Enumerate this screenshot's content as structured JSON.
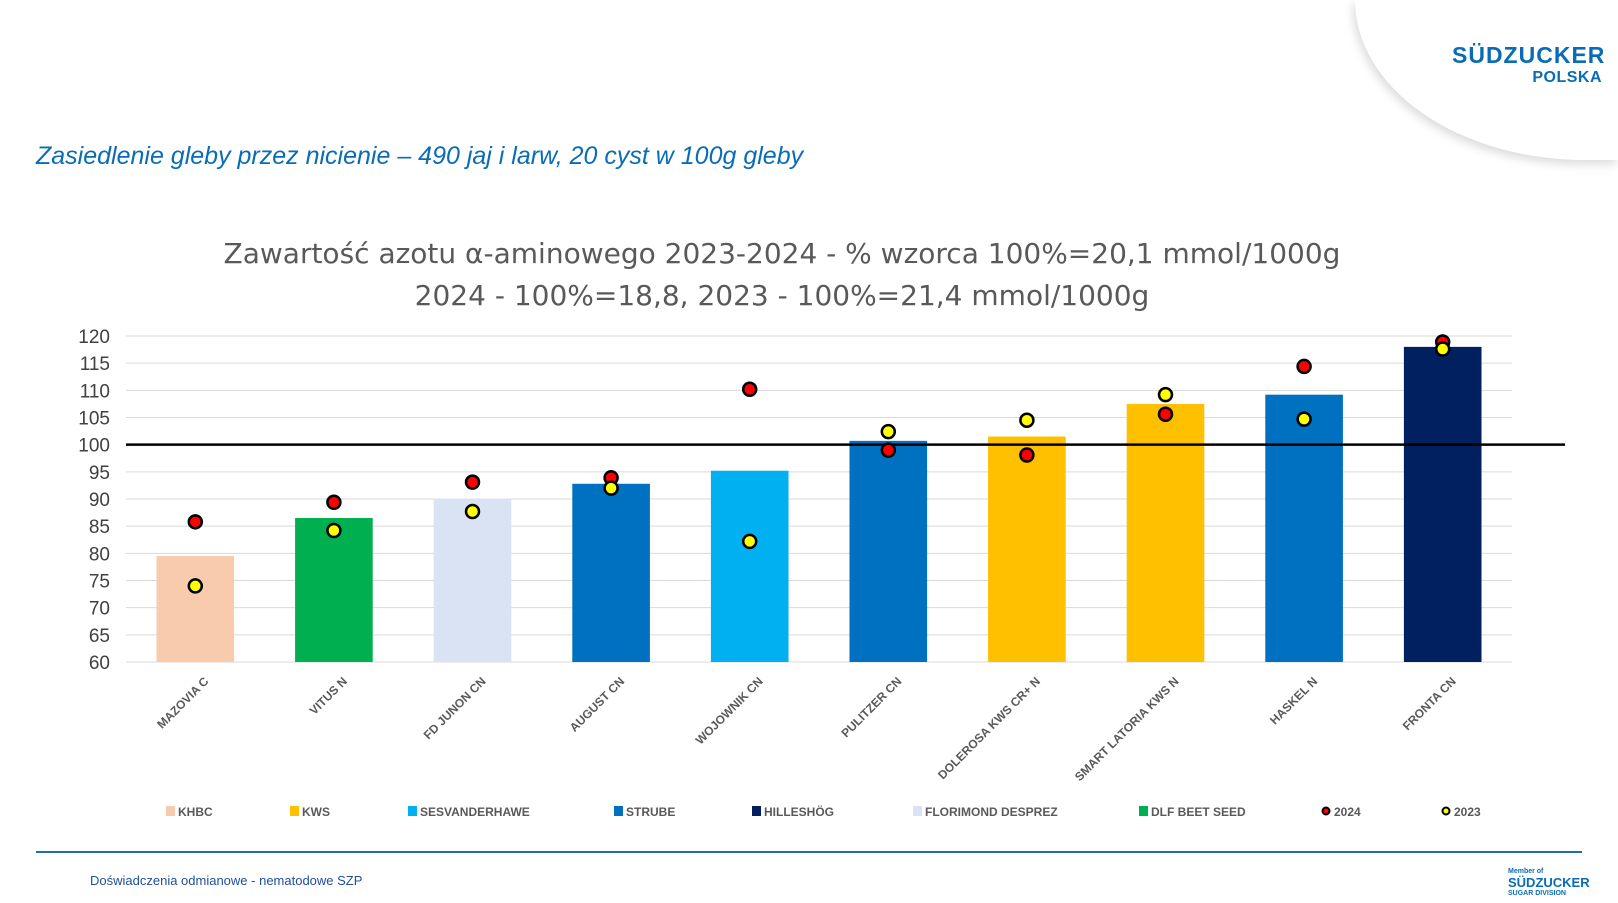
{
  "header": {
    "subtitle": "Zasiedlenie gleby przez nicienie – 490 jaj i larw, 20 cyst w 100g gleby",
    "logo_main": "SÜDZUCKER",
    "logo_sub": "POLSKA"
  },
  "footer": {
    "text": "Doświadczenia odmianowe - nematodowe SZP",
    "logo_top": "Member of",
    "logo_main": "SÜDZUCKER",
    "logo_sub": "SUGAR DIVISION"
  },
  "chart_data": {
    "type": "bar",
    "title": [
      "Zawartość azotu α-aminowego 2023-2024 - % wzorca 100%=20,1 mmol/1000g",
      "2024 - 100%=18,8, 2023 - 100%=21,4 mmol/1000g"
    ],
    "ylim": [
      60,
      120
    ],
    "yticks": [
      60,
      65,
      70,
      75,
      80,
      85,
      90,
      95,
      100,
      105,
      110,
      115,
      120
    ],
    "reference_line": 100,
    "grid": true,
    "categories": [
      "MAZOVIA C",
      "VITUS N",
      "FD JUNON CN",
      "AUGUST CN",
      "WOJOWNIK CN",
      "PULITZER CN",
      "DOLEROSA KWS CR+ N",
      "SMART LATORIA KWS N",
      "HASKEL N",
      "FRONTA CN"
    ],
    "values": [
      79.5,
      86.5,
      90.1,
      92.8,
      95.2,
      100.7,
      101.5,
      107.5,
      109.2,
      118.0
    ],
    "breeder": [
      "KHBC",
      "DLF BEET SEED",
      "FLORIMOND DESPREZ",
      "STRUBE",
      "SESVANDERHAWE",
      "STRUBE",
      "KWS",
      "KWS",
      "STRUBE",
      "HILLESHÖG"
    ],
    "series": [
      {
        "name": "2024",
        "color": "#FF0000",
        "values": [
          85.8,
          89.4,
          93.1,
          93.9,
          110.2,
          99.0,
          98.1,
          105.6,
          114.4,
          118.9
        ]
      },
      {
        "name": "2023",
        "color": "#FFFF00",
        "values": [
          74.0,
          84.2,
          87.7,
          92.0,
          82.2,
          102.4,
          104.5,
          109.2,
          104.7,
          117.6
        ]
      }
    ],
    "legend": [
      {
        "label": "KHBC",
        "color": "#F8CBAD"
      },
      {
        "label": "KWS",
        "color": "#FFC000"
      },
      {
        "label": "SESVANDERHAWE",
        "color": "#00B0F0"
      },
      {
        "label": "STRUBE",
        "color": "#0070C0"
      },
      {
        "label": "HILLESHÖG",
        "color": "#002060"
      },
      {
        "label": "FLORIMOND DESPREZ",
        "color": "#DAE3F3"
      },
      {
        "label": "DLF BEET SEED",
        "color": "#00B050"
      },
      {
        "label": "2024",
        "color": "#FF0000",
        "marker": "dot"
      },
      {
        "label": "2023",
        "color": "#FFFF00",
        "marker": "dot"
      }
    ],
    "legend_position": "bottom"
  }
}
